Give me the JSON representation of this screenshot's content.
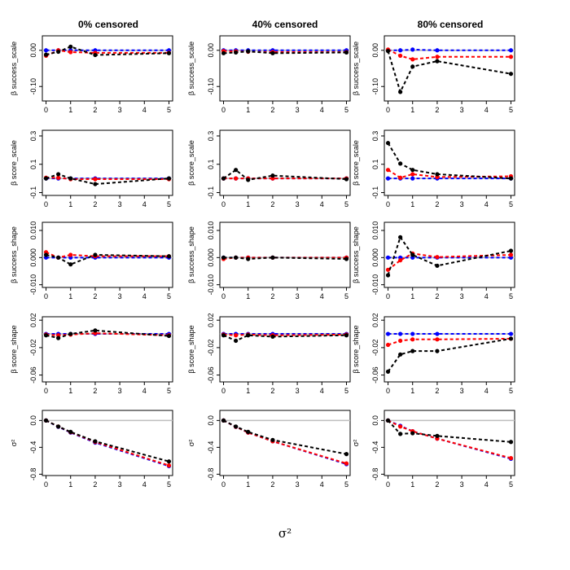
{
  "chart_data": {
    "type": "line",
    "x": [
      0,
      0.5,
      1,
      2,
      5
    ],
    "x_ticks": [
      "0",
      "1",
      "2",
      "3",
      "4",
      "5"
    ],
    "x_axis_label": "σ²",
    "columns": [
      "0% censored",
      "40% censored",
      "80% censored"
    ],
    "series_colors": {
      "black": "#000000",
      "red": "#ff0000",
      "blue": "#0000ff",
      "reference": "#bebebe"
    },
    "rows": [
      {
        "ylabel": "β success_scale",
        "ylim": [
          -0.14,
          0.04
        ],
        "yticks": [
          "-0.10",
          "0.00"
        ],
        "ytick_values": [
          -0.1,
          0.0
        ],
        "panels": [
          {
            "black": [
              -0.012,
              -0.004,
              0.01,
              -0.013,
              -0.008
            ],
            "red": [
              -0.015,
              0.0,
              -0.005,
              -0.007,
              -0.007
            ],
            "blue": [
              0.0,
              0.0,
              0.0,
              0.0,
              0.0
            ]
          },
          {
            "black": [
              -0.008,
              -0.006,
              -0.003,
              -0.008,
              -0.006
            ],
            "red": [
              -0.002,
              -0.003,
              -0.004,
              -0.005,
              -0.005
            ],
            "blue": [
              0.0,
              0.0,
              0.0,
              0.0,
              0.0
            ]
          },
          {
            "black": [
              -0.002,
              -0.115,
              -0.045,
              -0.03,
              -0.065
            ],
            "red": [
              0.002,
              -0.015,
              -0.025,
              -0.018,
              -0.018
            ],
            "blue": [
              0.0,
              0.0,
              0.002,
              0.0,
              0.0
            ]
          }
        ]
      },
      {
        "ylabel": "β score_scale",
        "ylim": [
          -0.12,
          0.34
        ],
        "yticks": [
          "-0.1",
          "0.1",
          "0.3"
        ],
        "ytick_values": [
          -0.1,
          0.1,
          0.3
        ],
        "panels": [
          {
            "black": [
              0.0,
              0.03,
              0.0,
              -0.04,
              0.0
            ],
            "red": [
              0.005,
              0.005,
              -0.005,
              -0.005,
              -0.005
            ],
            "blue": [
              0.0,
              0.0,
              0.0,
              0.0,
              0.0
            ]
          },
          {
            "black": [
              0.0,
              0.06,
              -0.01,
              0.02,
              -0.005
            ],
            "red": [
              0.0,
              0.0,
              0.0,
              0.0,
              0.0
            ],
            "blue": [
              0.0,
              0.0,
              0.0,
              0.0,
              0.0
            ]
          },
          {
            "black": [
              0.25,
              0.105,
              0.06,
              0.03,
              0.0
            ],
            "red": [
              0.06,
              0.005,
              0.03,
              0.01,
              0.015
            ],
            "blue": [
              0.0,
              0.0,
              0.0,
              0.0,
              0.0
            ]
          }
        ]
      },
      {
        "ylabel": "β success_shape",
        "ylim": [
          -0.011,
          0.013
        ],
        "yticks": [
          "-0.010",
          "0.000",
          "0.010"
        ],
        "ytick_values": [
          -0.01,
          0.0,
          0.01
        ],
        "panels": [
          {
            "black": [
              0.001,
              0.0,
              -0.0025,
              0.001,
              0.0005
            ],
            "red": [
              0.002,
              0.0,
              0.001,
              0.0005,
              0.0005
            ],
            "blue": [
              0.0,
              0.0,
              0.0,
              0.0,
              0.0
            ]
          },
          {
            "black": [
              0.0,
              0.0,
              -0.0005,
              0.0,
              -0.0005
            ],
            "red": [
              -0.0005,
              0.0,
              0.0,
              0.0,
              0.0
            ],
            "blue": [
              0.0,
              0.0,
              0.0,
              0.0,
              0.0
            ]
          },
          {
            "black": [
              -0.0065,
              0.0075,
              0.001,
              -0.003,
              0.0025
            ],
            "red": [
              -0.0045,
              -0.001,
              0.0015,
              0.0002,
              0.001
            ],
            "blue": [
              0.0,
              0.0,
              0.0,
              0.0,
              0.0
            ]
          }
        ]
      },
      {
        "ylabel": "β score_shape",
        "ylim": [
          -0.07,
          0.025
        ],
        "yticks": [
          "-0.06",
          "-0.02",
          "0.02"
        ],
        "ytick_values": [
          -0.06,
          -0.02,
          0.02
        ],
        "panels": [
          {
            "black": [
              -0.002,
              -0.006,
              0.0,
              0.005,
              -0.003
            ],
            "red": [
              -0.001,
              -0.002,
              -0.001,
              0.001,
              -0.002
            ],
            "blue": [
              0.0,
              0.0,
              0.0,
              0.0,
              0.0
            ]
          },
          {
            "black": [
              -0.002,
              -0.01,
              -0.002,
              -0.004,
              -0.002
            ],
            "red": [
              -0.001,
              -0.002,
              -0.001,
              -0.002,
              -0.001
            ],
            "blue": [
              0.0,
              0.0,
              0.0,
              0.0,
              0.0
            ]
          },
          {
            "black": [
              -0.055,
              -0.03,
              -0.025,
              -0.025,
              -0.007
            ],
            "red": [
              -0.016,
              -0.01,
              -0.008,
              -0.008,
              -0.007
            ],
            "blue": [
              0.0,
              0.0,
              0.0,
              0.0,
              0.0
            ]
          }
        ]
      },
      {
        "ylabel": "σ²",
        "ylim": [
          -0.82,
          0.15
        ],
        "yticks": [
          "-0.8",
          "-0.4",
          "0.0"
        ],
        "ytick_values": [
          -0.8,
          -0.4,
          0.0
        ],
        "panels": [
          {
            "black": [
              0.0,
              -0.09,
              -0.17,
              -0.31,
              -0.61
            ],
            "red": [
              0.0,
              -0.09,
              -0.175,
              -0.32,
              -0.67
            ],
            "blue": [
              0.0,
              -0.095,
              -0.18,
              -0.33,
              -0.68
            ]
          },
          {
            "black": [
              0.0,
              -0.09,
              -0.17,
              -0.29,
              -0.5
            ],
            "red": [
              0.0,
              -0.095,
              -0.18,
              -0.31,
              -0.64
            ],
            "blue": [
              0.0,
              -0.095,
              -0.18,
              -0.31,
              -0.65
            ]
          },
          {
            "black": [
              0.0,
              -0.2,
              -0.19,
              -0.23,
              -0.32
            ],
            "red": [
              0.0,
              -0.09,
              -0.16,
              -0.27,
              -0.56
            ],
            "blue": [
              0.0,
              -0.08,
              -0.16,
              -0.27,
              -0.57
            ]
          }
        ]
      }
    ]
  }
}
